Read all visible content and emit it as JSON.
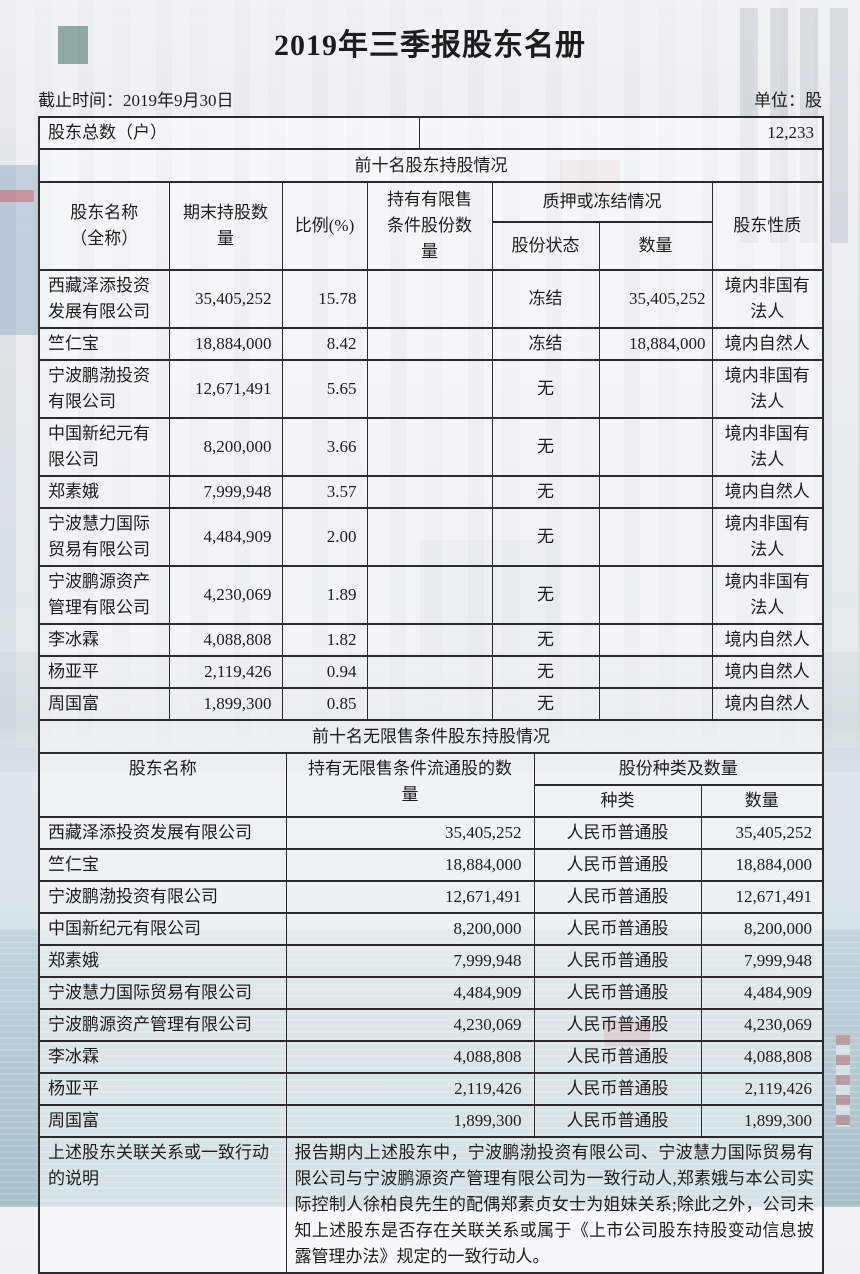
{
  "page": {
    "title": "2019年三季报股东名册",
    "cutoff": "截止时间：2019年9月30日",
    "unit": "单位：股",
    "total_label": "股东总数（户）",
    "total_value": "12,233"
  },
  "top10": {
    "section_title": "前十名股东持股情况",
    "headers": {
      "name": "股东名称\n（全称）",
      "shares": "期末持股数\n量",
      "ratio": "比例(%)",
      "restricted": "持有有限售\n条件股份数\n量",
      "pledge_group": "质押或冻结情况",
      "status": "股份状态",
      "qty": "数量",
      "nature": "股东性质"
    },
    "rows": [
      {
        "name": "西藏泽添投资发展有限公司",
        "shares": "35,405,252",
        "ratio": "15.78",
        "restricted": "",
        "status": "冻结",
        "qty": "35,405,252",
        "nature": "境内非国有法人"
      },
      {
        "name": "竺仁宝",
        "shares": "18,884,000",
        "ratio": "8.42",
        "restricted": "",
        "status": "冻结",
        "qty": "18,884,000",
        "nature": "境内自然人"
      },
      {
        "name": "宁波鹏渤投资有限公司",
        "shares": "12,671,491",
        "ratio": "5.65",
        "restricted": "",
        "status": "无",
        "qty": "",
        "nature": "境内非国有法人"
      },
      {
        "name": "中国新纪元有限公司",
        "shares": "8,200,000",
        "ratio": "3.66",
        "restricted": "",
        "status": "无",
        "qty": "",
        "nature": "境内非国有法人"
      },
      {
        "name": "郑素娥",
        "shares": "7,999,948",
        "ratio": "3.57",
        "restricted": "",
        "status": "无",
        "qty": "",
        "nature": "境内自然人"
      },
      {
        "name": "宁波慧力国际贸易有限公司",
        "shares": "4,484,909",
        "ratio": "2.00",
        "restricted": "",
        "status": "无",
        "qty": "",
        "nature": "境内非国有法人"
      },
      {
        "name": "宁波鹏源资产管理有限公司",
        "shares": "4,230,069",
        "ratio": "1.89",
        "restricted": "",
        "status": "无",
        "qty": "",
        "nature": "境内非国有法人"
      },
      {
        "name": "李冰霖",
        "shares": "4,088,808",
        "ratio": "1.82",
        "restricted": "",
        "status": "无",
        "qty": "",
        "nature": "境内自然人"
      },
      {
        "name": "杨亚平",
        "shares": "2,119,426",
        "ratio": "0.94",
        "restricted": "",
        "status": "无",
        "qty": "",
        "nature": "境内自然人"
      },
      {
        "name": "周国富",
        "shares": "1,899,300",
        "ratio": "0.85",
        "restricted": "",
        "status": "无",
        "qty": "",
        "nature": "境内自然人"
      }
    ]
  },
  "unrestricted": {
    "section_title": "前十名无限售条件股东持股情况",
    "headers": {
      "name": "股东名称",
      "shares": "持有无限售条件流通股的数\n量",
      "group": "股份种类及数量",
      "type": "种类",
      "qty": "数量"
    },
    "rows": [
      {
        "name": "西藏泽添投资发展有限公司",
        "shares": "35,405,252",
        "type": "人民币普通股",
        "qty": "35,405,252"
      },
      {
        "name": "竺仁宝",
        "shares": "18,884,000",
        "type": "人民币普通股",
        "qty": "18,884,000"
      },
      {
        "name": "宁波鹏渤投资有限公司",
        "shares": "12,671,491",
        "type": "人民币普通股",
        "qty": "12,671,491"
      },
      {
        "name": "中国新纪元有限公司",
        "shares": "8,200,000",
        "type": "人民币普通股",
        "qty": "8,200,000"
      },
      {
        "name": "郑素娥",
        "shares": "7,999,948",
        "type": "人民币普通股",
        "qty": "7,999,948"
      },
      {
        "name": "宁波慧力国际贸易有限公司",
        "shares": "4,484,909",
        "type": "人民币普通股",
        "qty": "4,484,909"
      },
      {
        "name": "宁波鹏源资产管理有限公司",
        "shares": "4,230,069",
        "type": "人民币普通股",
        "qty": "4,230,069"
      },
      {
        "name": "李冰霖",
        "shares": "4,088,808",
        "type": "人民币普通股",
        "qty": "4,088,808"
      },
      {
        "name": "杨亚平",
        "shares": "2,119,426",
        "type": "人民币普通股",
        "qty": "2,119,426"
      },
      {
        "name": "周国富",
        "shares": "1,899,300",
        "type": "人民币普通股",
        "qty": "1,899,300"
      }
    ]
  },
  "notes": {
    "label": "上述股东关联关系或一致行动的说明",
    "text": "报告期内上述股东中，宁波鹏渤投资有限公司、宁波慧力国际贸易有限公司与宁波鹏源资产管理有限公司为一致行动人,郑素娥与本公司实际控制人徐柏良先生的配偶郑素贞女士为姐妹关系;除此之外，公司未知上述股东是否存在关联关系或属于《上市公司股东持股变动信息披露管理办法》规定的一致行动人。"
  }
}
